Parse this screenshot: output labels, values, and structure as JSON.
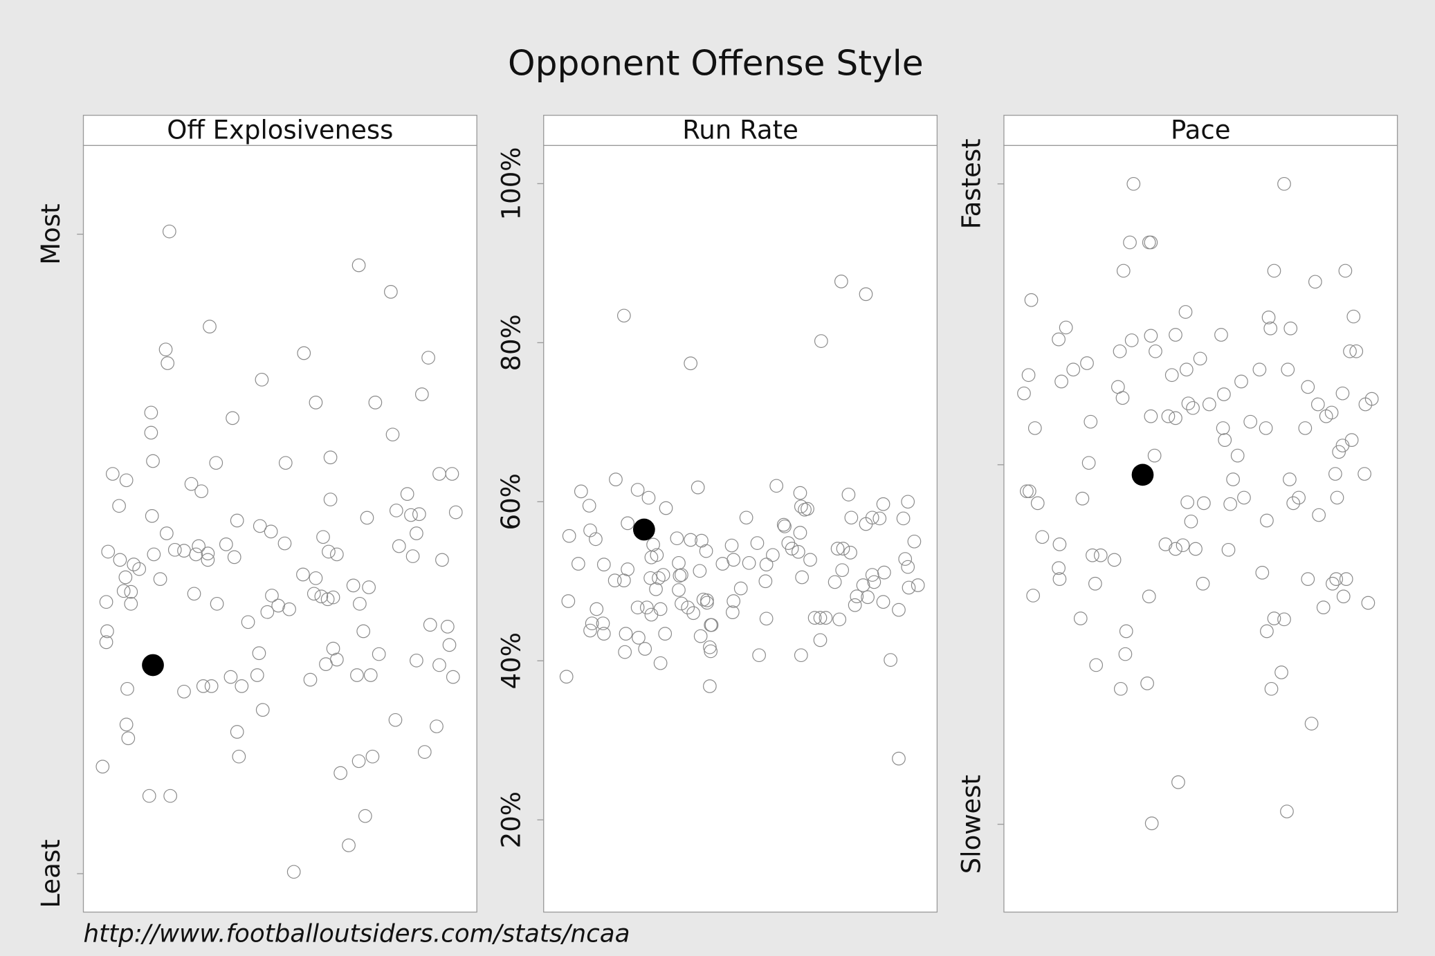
{
  "title": "Opponent Offense Style",
  "source": "http://www.footballoutsiders.com/stats/ncaa",
  "chart_data": [
    {
      "type": "scatter",
      "title": "Off Explosiveness",
      "xlim": [
        0,
        430
      ],
      "ylim": [
        0,
        838
      ],
      "yticks": [
        {
          "value": 42,
          "label": "Least"
        },
        {
          "value": 741,
          "label": "Most"
        }
      ],
      "x": [
        94,
        301,
        336,
        138,
        241,
        90,
        377,
        92,
        195,
        370,
        254,
        319,
        74,
        163,
        74,
        338,
        76,
        145,
        221,
        270,
        32,
        47,
        389,
        403,
        118,
        129,
        354,
        270,
        39,
        342,
        367,
        358,
        75,
        310,
        407,
        168,
        193,
        205,
        262,
        91,
        364,
        156,
        220,
        126,
        27,
        100,
        110,
        123,
        136,
        136,
        165,
        77,
        268,
        277,
        345,
        360,
        392,
        40,
        55,
        61,
        46,
        240,
        254,
        44,
        52,
        84,
        121,
        206,
        252,
        260,
        273,
        295,
        312,
        267,
        213,
        225,
        201,
        25,
        52,
        146,
        302,
        180,
        379,
        398,
        26,
        306,
        25,
        273,
        400,
        323,
        192,
        277,
        265,
        364,
        389,
        404,
        48,
        110,
        131,
        140,
        161,
        173,
        190,
        248,
        299,
        314,
        196,
        341,
        47,
        386,
        49,
        168,
        170,
        373,
        21,
        316,
        301,
        281,
        72,
        95,
        308,
        290,
        230
      ],
      "values": [
        744,
        707,
        678,
        640,
        611,
        615,
        606,
        600,
        582,
        566,
        557,
        557,
        546,
        540,
        524,
        522,
        493,
        491,
        491,
        497,
        479,
        472,
        479,
        479,
        468,
        460,
        457,
        451,
        444,
        439,
        435,
        434,
        433,
        431,
        437,
        428,
        422,
        416,
        410,
        414,
        414,
        402,
        403,
        400,
        394,
        396,
        395,
        391,
        392,
        385,
        388,
        391,
        394,
        391,
        400,
        389,
        385,
        385,
        380,
        375,
        366,
        369,
        365,
        351,
        350,
        364,
        348,
        346,
        348,
        345,
        344,
        357,
        355,
        342,
        335,
        331,
        328,
        339,
        337,
        337,
        337,
        317,
        314,
        312,
        307,
        307,
        295,
        288,
        292,
        282,
        283,
        276,
        271,
        275,
        270,
        257,
        244,
        241,
        247,
        247,
        257,
        247,
        259,
        254,
        259,
        259,
        221,
        210,
        205,
        203,
        190,
        197,
        170,
        175,
        159,
        170,
        165,
        152,
        127,
        127,
        105,
        73,
        44
      ],
      "highlight": {
        "x": 76,
        "values": 270
      }
    },
    {
      "type": "scatter",
      "title": "Run Rate",
      "xlim": [
        0,
        431
      ],
      "ylim": [
        8.4,
        104.8
      ],
      "yticks": [
        {
          "value": 20,
          "label": "20%"
        },
        {
          "value": 40,
          "label": "40%"
        },
        {
          "value": 60,
          "label": "60%"
        },
        {
          "value": 80,
          "label": "80%"
        },
        {
          "value": 100,
          "label": "100%"
        }
      ],
      "x": [
        88,
        326,
        353,
        161,
        304,
        255,
        79,
        103,
        115,
        169,
        281,
        41,
        289,
        50,
        134,
        28,
        38,
        57,
        51,
        92,
        66,
        78,
        88,
        92,
        120,
        118,
        124,
        126,
        146,
        161,
        173,
        178,
        148,
        151,
        196,
        206,
        208,
        222,
        225,
        234,
        244,
        251,
        263,
        264,
        268,
        272,
        279,
        281,
        282,
        286,
        292,
        322,
        328,
        336,
        334,
        337,
        353,
        360,
        368,
        372,
        399,
        394,
        406,
        396,
        399,
        373,
        360,
        362,
        350,
        343,
        341,
        319,
        327,
        283,
        243,
        216,
        179,
        171,
        149,
        148,
        131,
        123,
        117,
        113,
        103,
        118,
        128,
        151,
        158,
        164,
        175,
        183,
        179,
        208,
        207,
        244,
        297,
        303,
        309,
        324,
        355,
        372,
        400,
        410,
        389,
        27,
        58,
        53,
        65,
        51,
        66,
        90,
        104,
        133,
        172,
        184,
        182,
        183,
        111,
        89,
        128,
        236,
        282,
        303,
        380,
        25,
        182,
        389
      ],
      "values": [
        83.4,
        87.7,
        86.1,
        77.4,
        80.2,
        62.0,
        62.8,
        61.5,
        60.5,
        61.8,
        61.1,
        61.3,
        59.1,
        59.5,
        59.2,
        55.7,
        52.2,
        55.3,
        56.4,
        57.3,
        52.1,
        50.1,
        50.1,
        51.5,
        54.6,
        53.0,
        53.3,
        50.4,
        55.4,
        55.2,
        55.1,
        53.8,
        52.3,
        50.8,
        52.2,
        54.5,
        52.7,
        58.0,
        52.3,
        54.8,
        52.1,
        53.3,
        57.1,
        56.9,
        54.8,
        54.1,
        53.7,
        56.1,
        59.4,
        59.0,
        52.7,
        54.1,
        54.1,
        53.6,
        60.9,
        58.0,
        57.2,
        58.0,
        57.9,
        59.7,
        60.0,
        57.9,
        55.0,
        52.8,
        51.8,
        51.1,
        50.8,
        49.9,
        49.5,
        48.1,
        47.0,
        49.9,
        51.4,
        50.5,
        50.0,
        49.1,
        47.6,
        51.3,
        50.7,
        48.9,
        50.8,
        49.0,
        50.4,
        46.7,
        46.7,
        45.8,
        46.5,
        47.2,
        46.7,
        46.0,
        47.7,
        44.5,
        47.3,
        47.5,
        46.1,
        45.3,
        45.4,
        45.4,
        45.4,
        45.2,
        48.0,
        47.4,
        49.2,
        49.5,
        46.4,
        47.5,
        46.5,
        44.7,
        44.7,
        43.8,
        43.4,
        43.4,
        42.9,
        43.4,
        43.1,
        44.5,
        41.7,
        41.2,
        41.5,
        41.1,
        39.7,
        40.7,
        40.7,
        42.6,
        40.1,
        38.0,
        36.8,
        27.7
      ],
      "highlight": {
        "x": 110,
        "values": 56.5
      }
    },
    {
      "type": "scatter",
      "title": "Pace",
      "xlim": [
        0,
        431
      ],
      "ylim": [
        0,
        838
      ],
      "yticks": [
        {
          "value": 96,
          "label": "Slowest"
        },
        {
          "value": 489,
          "label": null
        },
        {
          "value": 796,
          "label": "Fastest"
        }
      ],
      "x": [
        142,
        307,
        138,
        159,
        161,
        131,
        296,
        374,
        341,
        30,
        199,
        383,
        290,
        68,
        60,
        140,
        161,
        188,
        238,
        292,
        314,
        127,
        166,
        215,
        91,
        76,
        63,
        200,
        311,
        280,
        27,
        184,
        333,
        22,
        125,
        130,
        202,
        225,
        241,
        260,
        371,
        403,
        396,
        344,
        386,
        379,
        359,
        353,
        188,
        161,
        180,
        207,
        95,
        34,
        270,
        287,
        330,
        381,
        242,
        240,
        371,
        367,
        165,
        256,
        93,
        363,
        251,
        313,
        395,
        25,
        28,
        37,
        86,
        201,
        263,
        219,
        323,
        317,
        365,
        248,
        288,
        205,
        345,
        42,
        61,
        177,
        188,
        196,
        210,
        246,
        97,
        106,
        121,
        60,
        61,
        100,
        218,
        283,
        333,
        364,
        375,
        360,
        32,
        159,
        372,
        399,
        350,
        84,
        296,
        307,
        134,
        288,
        133,
        101,
        304,
        157,
        128,
        293,
        337,
        191,
        310,
        162
      ],
      "values": [
        796,
        796,
        732,
        732,
        732,
        701,
        701,
        701,
        689,
        669,
        656,
        651,
        650,
        639,
        626,
        625,
        630,
        631,
        631,
        638,
        638,
        613,
        613,
        605,
        600,
        593,
        580,
        593,
        593,
        593,
        587,
        587,
        574,
        567,
        574,
        562,
        556,
        555,
        566,
        580,
        567,
        561,
        555,
        555,
        613,
        613,
        546,
        542,
        540,
        542,
        542,
        551,
        536,
        529,
        536,
        529,
        529,
        516,
        516,
        529,
        510,
        503,
        499,
        499,
        491,
        479,
        473,
        473,
        479,
        460,
        460,
        447,
        452,
        448,
        453,
        447,
        453,
        447,
        453,
        446,
        428,
        427,
        434,
        410,
        402,
        402,
        397,
        401,
        397,
        396,
        390,
        390,
        385,
        376,
        364,
        359,
        359,
        371,
        364,
        364,
        364,
        359,
        346,
        345,
        345,
        338,
        333,
        321,
        321,
        320,
        307,
        307,
        282,
        270,
        262,
        250,
        244,
        244,
        206,
        142,
        110,
        97
      ],
      "highlight": {
        "x": 152,
        "values": 478
      }
    }
  ]
}
